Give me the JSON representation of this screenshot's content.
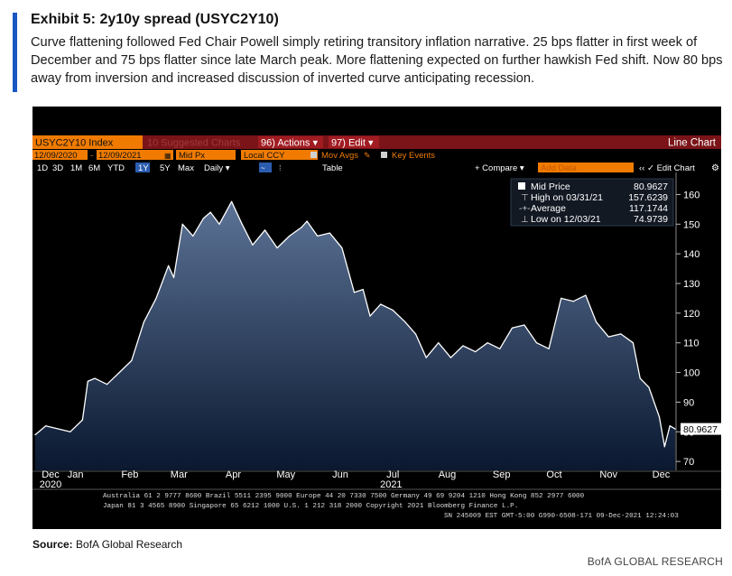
{
  "exhibit": {
    "title": "Exhibit 5: 2y10y spread (USYC2Y10)",
    "description": "Curve flattening followed Fed Chair Powell simply retiring transitory inflation narrative. 25 bps flatter in first week of December and 75 bps flatter since late March peak. More flattening expected on further hawkish Fed shift. Now 80 bps away from inversion and increased discussion of inverted curve anticipating recession."
  },
  "toolbar": {
    "ticker": "USYC2Y10 Index",
    "suggested": "10 Suggested Charts",
    "actions": "96) Actions ▾",
    "edit": "97) Edit ▾",
    "chart_type": "Line Chart",
    "date_from": "12/09/2020",
    "date_to": "12/09/2021",
    "field": "Mid Px",
    "currency": "Local CCY",
    "mov_avgs": "Mov Avgs",
    "key_events": "Key Events",
    "ranges": [
      "1D",
      "3D",
      "1M",
      "6M",
      "YTD",
      "1Y",
      "5Y",
      "Max"
    ],
    "active_range": "1Y",
    "freq": "Daily ▾",
    "table": "Table",
    "compare": "+ Compare ▾",
    "add_data": "Add Data",
    "edit_chart": "‹‹  ✓ Edit Chart"
  },
  "legend": {
    "mid_label": "Mid Price",
    "mid_value": "80.9627",
    "high_label": "High on 03/31/21",
    "high_value": "157.6239",
    "avg_label": "Average",
    "avg_value": "117.1744",
    "low_label": "Low on 12/03/21",
    "low_value": "74.9739"
  },
  "last_value_tag": "80.9627",
  "footer": {
    "line1": "Australia 61 2 9777 8600 Brazil 5511 2395 9000 Europe 44 20 7330 7500 Germany 49 69 9204 1210 Hong Kong 852 2977 6000",
    "line2": "Japan 81 3 4565 8900        Singapore 65 6212 1000      U.S. 1 212 318 2000          Copyright 2021 Bloomberg Finance L.P.",
    "line3": "SN 245009 EST  GMT-5:00 G990-6508-171 09-Dec-2021 12:24:03"
  },
  "source_label": "Source:",
  "source_text": "BofA Global Research",
  "brand": "BofA GLOBAL RESEARCH",
  "colors": {
    "accent": "#1a56c4",
    "series_line": "#ffffff",
    "area_top": "#5c7396",
    "area_bottom": "#0a1830",
    "toolbar_red": "#7a1418",
    "toolbar_orange": "#f07b00"
  },
  "chart_data": {
    "type": "area",
    "title": "USYC2Y10 Index",
    "xlabel": "",
    "ylabel": "",
    "ylim": [
      67,
      165
    ],
    "yticks": [
      70,
      80,
      90,
      100,
      110,
      120,
      130,
      140,
      150,
      160
    ],
    "xlim": [
      "2020-12-09",
      "2021-12-09"
    ],
    "xticks": [
      {
        "label": "Dec",
        "date": "2020-12-01"
      },
      {
        "label": "Jan",
        "date": "2021-01-01"
      },
      {
        "label": "Feb",
        "date": "2021-02-01"
      },
      {
        "label": "Mar",
        "date": "2021-03-01"
      },
      {
        "label": "Apr",
        "date": "2021-04-01"
      },
      {
        "label": "May",
        "date": "2021-05-01"
      },
      {
        "label": "Jun",
        "date": "2021-06-01"
      },
      {
        "label": "Jul",
        "date": "2021-07-01"
      },
      {
        "label": "Aug",
        "date": "2021-08-01"
      },
      {
        "label": "Sep",
        "date": "2021-09-01"
      },
      {
        "label": "Oct",
        "date": "2021-10-01"
      },
      {
        "label": "Nov",
        "date": "2021-11-01"
      },
      {
        "label": "Dec",
        "date": "2021-12-01"
      }
    ],
    "year_labels": [
      {
        "label": "2020",
        "date": "2020-12-01"
      },
      {
        "label": "2021",
        "date": "2021-06-30"
      }
    ],
    "grid": false,
    "series": [
      {
        "name": "Mid Price",
        "x": [
          "2020-12-09",
          "2020-12-15",
          "2020-12-22",
          "2020-12-29",
          "2021-01-05",
          "2021-01-08",
          "2021-01-12",
          "2021-01-19",
          "2021-01-26",
          "2021-02-02",
          "2021-02-09",
          "2021-02-16",
          "2021-02-23",
          "2021-02-26",
          "2021-03-03",
          "2021-03-09",
          "2021-03-15",
          "2021-03-19",
          "2021-03-24",
          "2021-03-31",
          "2021-04-06",
          "2021-04-12",
          "2021-04-19",
          "2021-04-26",
          "2021-05-03",
          "2021-05-10",
          "2021-05-13",
          "2021-05-19",
          "2021-05-26",
          "2021-06-02",
          "2021-06-09",
          "2021-06-14",
          "2021-06-18",
          "2021-06-24",
          "2021-07-01",
          "2021-07-08",
          "2021-07-14",
          "2021-07-20",
          "2021-07-27",
          "2021-08-03",
          "2021-08-10",
          "2021-08-17",
          "2021-08-24",
          "2021-08-31",
          "2021-09-07",
          "2021-09-14",
          "2021-09-21",
          "2021-09-28",
          "2021-10-05",
          "2021-10-12",
          "2021-10-19",
          "2021-10-25",
          "2021-11-01",
          "2021-11-08",
          "2021-11-15",
          "2021-11-19",
          "2021-11-24",
          "2021-11-30",
          "2021-12-03",
          "2021-12-06",
          "2021-12-09"
        ],
        "y": [
          79,
          82,
          81,
          80,
          84,
          97,
          98,
          96,
          100,
          104,
          117,
          125,
          136,
          132,
          150,
          146,
          152,
          154,
          150,
          157.6,
          150,
          143,
          148,
          142,
          146,
          149,
          151,
          146,
          147,
          142,
          127,
          128,
          119,
          123,
          121,
          117,
          113,
          105,
          110,
          105,
          109,
          107,
          110,
          108,
          115,
          116,
          110,
          108,
          125,
          124,
          126,
          117,
          112,
          113,
          110,
          98,
          95,
          85,
          75,
          82,
          80.96
        ]
      }
    ]
  }
}
